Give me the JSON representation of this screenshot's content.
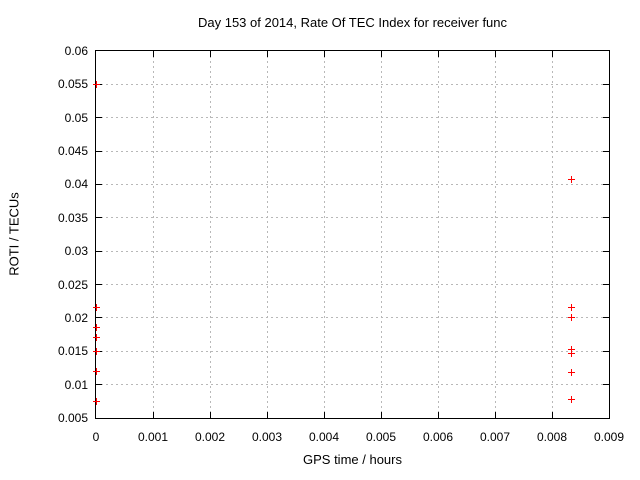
{
  "chart_data": {
    "type": "scatter",
    "title": "Day 153 of 2014, Rate Of TEC Index for receiver func",
    "xlabel": "GPS time / hours",
    "ylabel": "ROTI / TECUs",
    "xlim": [
      0,
      0.009
    ],
    "ylim": [
      0.005,
      0.06
    ],
    "xticks": [
      0,
      0.001,
      0.002,
      0.003,
      0.004,
      0.005,
      0.006,
      0.007,
      0.008,
      0.009
    ],
    "xtick_labels": [
      "0",
      "0.001",
      "0.002",
      "0.003",
      "0.004",
      "0.005",
      "0.006",
      "0.007",
      "0.008",
      "0.009"
    ],
    "yticks": [
      0.005,
      0.01,
      0.015,
      0.02,
      0.025,
      0.03,
      0.035,
      0.04,
      0.045,
      0.05,
      0.055,
      0.06
    ],
    "ytick_labels": [
      "0.005",
      "0.01",
      "0.015",
      "0.02",
      "0.025",
      "0.03",
      "0.035",
      "0.04",
      "0.045",
      "0.05",
      "0.055",
      "0.06"
    ],
    "grid": true,
    "legend": "none",
    "marker": {
      "symbol": "plus",
      "color": "#ff0000",
      "size": 7
    },
    "frame_color": "#000000",
    "grid_color": "#b8b8b8",
    "series": [
      {
        "name": "roti-points",
        "points": [
          [
            0,
            0.055
          ],
          [
            0,
            0.0215
          ],
          [
            0,
            0.0185
          ],
          [
            0,
            0.017
          ],
          [
            0,
            0.015
          ],
          [
            0,
            0.012
          ],
          [
            0,
            0.0075
          ],
          [
            0.00835,
            0.0407
          ],
          [
            0.00835,
            0.0215
          ],
          [
            0.00835,
            0.02
          ],
          [
            0.00835,
            0.0152
          ],
          [
            0.00835,
            0.0147
          ],
          [
            0.00835,
            0.0118
          ],
          [
            0.00835,
            0.0078
          ]
        ]
      }
    ]
  }
}
